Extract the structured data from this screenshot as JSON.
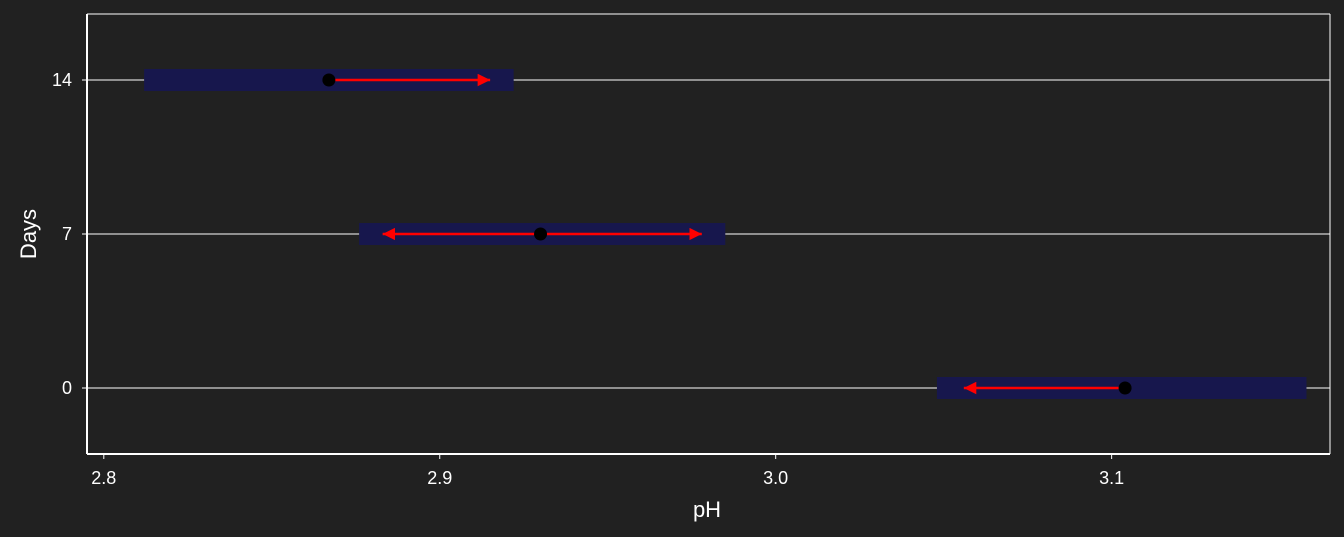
{
  "chart_data": {
    "type": "interval",
    "xlabel": "pH",
    "ylabel": "Days",
    "xlim": [
      2.795,
      3.165
    ],
    "ylim": [
      -3,
      17
    ],
    "x_ticks": [
      2.8,
      2.9,
      3.0,
      3.1
    ],
    "x_tick_labels": [
      "2.8",
      "2.9",
      "3.0",
      "3.1"
    ],
    "y_ticks": [
      0,
      7,
      14
    ],
    "y_tick_labels": [
      "0",
      "7",
      "14"
    ],
    "grid": "horizontal major",
    "rows": [
      {
        "day": 14,
        "interval": [
          2.812,
          2.922
        ],
        "point": 2.867,
        "arrows": [
          {
            "from": 2.867,
            "to": 2.915
          }
        ]
      },
      {
        "day": 7,
        "interval": [
          2.876,
          2.985
        ],
        "point": 2.93,
        "arrows": [
          {
            "from": 2.93,
            "to": 2.883
          },
          {
            "from": 2.93,
            "to": 2.978
          }
        ]
      },
      {
        "day": 0,
        "interval": [
          3.048,
          3.158
        ],
        "point": 3.104,
        "arrows": [
          {
            "from": 3.104,
            "to": 3.056
          }
        ]
      }
    ],
    "colors": {
      "background": "#212121",
      "frame": "#ffffff",
      "text": "#ffffff",
      "interval_band": "#17174d",
      "point": "#000000",
      "arrow": "#ff0000"
    }
  }
}
